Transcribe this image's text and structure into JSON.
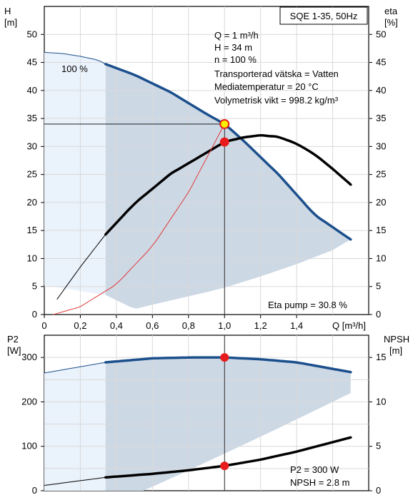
{
  "chart_data": [
    {
      "type": "line",
      "title_box": "SQE 1-35, 50Hz",
      "ylabel": "H",
      "yunit": "[m]",
      "y2label": "eta",
      "y2unit": "[%]",
      "xlabel": "Q [m³/h]",
      "xlim": [
        0,
        1.8
      ],
      "ylim": [
        0,
        55
      ],
      "x_ticks": [
        "0",
        "0,2",
        "0,4",
        "0,6",
        "0,8",
        "1,0",
        "1,2",
        "1,4"
      ],
      "y_ticks": [
        "0",
        "5",
        "10",
        "15",
        "20",
        "25",
        "30",
        "35",
        "40",
        "45",
        "50"
      ],
      "curve_label": "100 %",
      "info_lines": [
        "Q = 1 m³/h",
        "H = 34 m",
        "n = 100 %",
        "Transporterad vätska = Vatten",
        "Mediatemperatur = 20 °C",
        "Volymetrisk vikt = 998.2 kg/m³"
      ],
      "footer_text": "Eta pump = 30.8 %",
      "series": [
        {
          "name": "H",
          "x": [
            0,
            0.1,
            0.2,
            0.3,
            0.34,
            0.5,
            0.7,
            0.9,
            1.0,
            1.1,
            1.3,
            1.5,
            1.7
          ],
          "y": [
            46.8,
            46.6,
            46.1,
            45.4,
            44.7,
            42.8,
            39.7,
            35.8,
            34.0,
            31.2,
            25.0,
            17.8,
            13.4
          ]
        },
        {
          "name": "eta",
          "x": [
            0.07,
            0.2,
            0.34,
            0.5,
            0.7,
            0.9,
            1.0,
            1.1,
            1.2,
            1.3,
            1.4,
            1.5,
            1.6,
            1.7
          ],
          "y": [
            2.7,
            8.5,
            14.3,
            19.8,
            25.1,
            28.9,
            30.8,
            31.6,
            32.0,
            31.7,
            30.5,
            28.6,
            26.0,
            23.2
          ]
        },
        {
          "name": "system",
          "x": [
            0.05,
            0.2,
            0.4,
            0.6,
            0.8,
            1.0
          ],
          "y": [
            0.0,
            1.4,
            5.4,
            12.2,
            21.8,
            34.0
          ]
        }
      ],
      "operating_point": {
        "x": 1.0,
        "h": 34,
        "eta": 30.8
      }
    },
    {
      "type": "line",
      "ylabel": "P2",
      "yunit": "[W]",
      "y2label": "NPSH",
      "y2unit": "[m]",
      "xlim": [
        0,
        1.8
      ],
      "ylim": [
        0,
        350
      ],
      "y2lim": [
        0,
        17.5
      ],
      "y_ticks": [
        "0",
        "100",
        "200",
        "300"
      ],
      "y2_ticks": [
        "0",
        "5",
        "10",
        "15"
      ],
      "info_lines": [
        "P2 = 300 W",
        "NPSH = 2.8 m"
      ],
      "series": [
        {
          "name": "P2",
          "x": [
            0,
            0.34,
            0.6,
            0.8,
            1.0,
            1.2,
            1.4,
            1.7
          ],
          "y": [
            265,
            289,
            298,
            300,
            300,
            296,
            289,
            267
          ]
        },
        {
          "name": "NPSH",
          "x": [
            0,
            0.34,
            0.6,
            0.8,
            1.0,
            1.2,
            1.4,
            1.7
          ],
          "y": [
            0.6,
            1.5,
            1.9,
            2.3,
            2.8,
            3.5,
            4.4,
            6.0
          ]
        }
      ],
      "operating_point": {
        "x": 1.0,
        "p2": 300,
        "npsh": 2.8
      }
    }
  ],
  "colors": {
    "h_curve": "#1b4f8c",
    "eta_curve": "#000000",
    "system_curve": "#e03a3a",
    "fill_light": "#eaf2fb",
    "fill_dark": "#cdd8e5",
    "grid": "#d9d9d9",
    "marker_red": "#e81c1c",
    "marker_yellow": "#f7f000"
  }
}
